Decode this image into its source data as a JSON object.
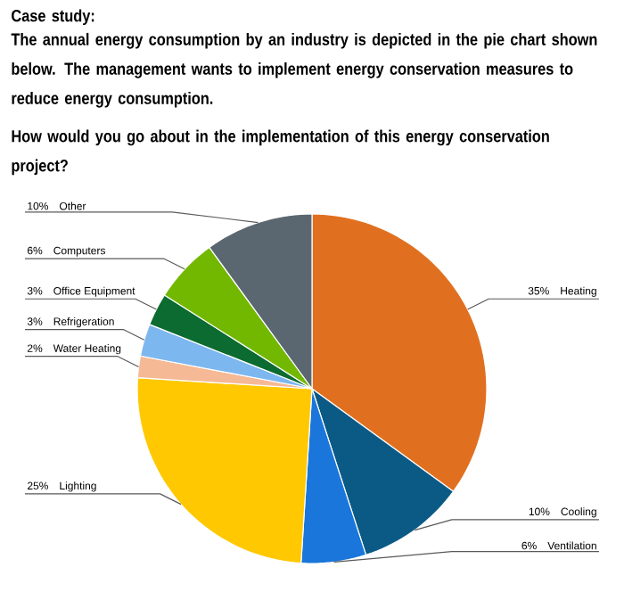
{
  "chart_data": {
    "type": "pie",
    "title": "Case study:",
    "subtitle": "The annual energy consumption by an industry is depicted in the pie chart shown below. The management wants to implement energy conservation measures to reduce energy consumption.",
    "annotations": [
      "How would you go about in the implementation of this energy conservation project?"
    ],
    "categories": [
      "Heating",
      "Cooling",
      "Ventilation",
      "Lighting",
      "Water Heating",
      "Refrigeration",
      "Office Equipment",
      "Computers",
      "Other"
    ],
    "values": [
      35,
      10,
      6,
      25,
      2,
      3,
      3,
      6,
      10
    ],
    "value_labels": [
      "35%",
      "10%",
      "6%",
      "25%",
      "2%",
      "3%",
      "3%",
      "6%",
      "10%"
    ],
    "colors": [
      "#e07020",
      "#0b5a86",
      "#1a76da",
      "#ffc800",
      "#f5b995",
      "#7db7ef",
      "#0b6b30",
      "#72b800",
      "#5b6770"
    ]
  }
}
